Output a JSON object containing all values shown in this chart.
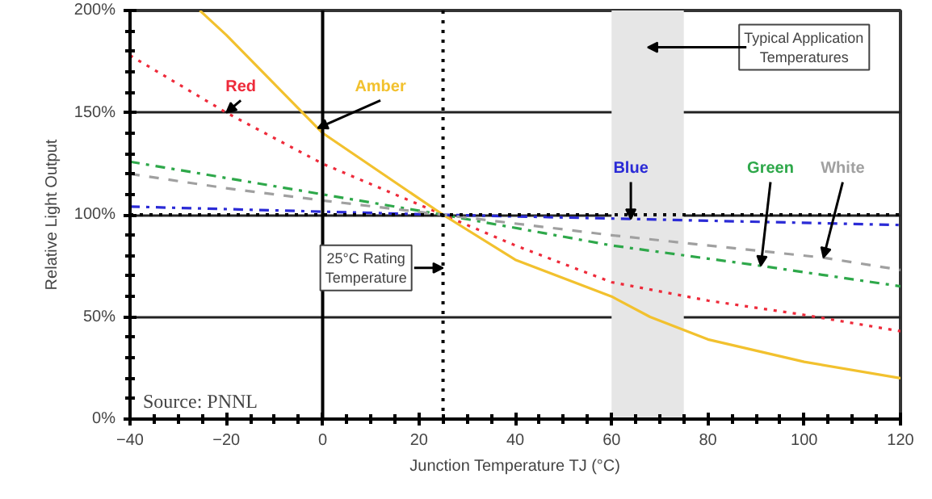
{
  "chart_data": {
    "type": "line",
    "xlabel": "Junction Temperature TJ (°C)",
    "ylabel": "Relative Light Output",
    "xlim": [
      -40,
      120
    ],
    "ylim": [
      0,
      200
    ],
    "xticks": [
      -40,
      -20,
      0,
      20,
      40,
      60,
      80,
      100,
      120
    ],
    "yticks": [
      {
        "value": 0,
        "label": "0%"
      },
      {
        "value": 50,
        "label": "50%"
      },
      {
        "value": 100,
        "label": "100%"
      },
      {
        "value": 150,
        "label": "150%"
      },
      {
        "value": 200,
        "label": "200%"
      }
    ],
    "grid": "y",
    "series": [
      {
        "name": "Red",
        "color": "#ee2a3a",
        "line_style": "dotted",
        "x": [
          -40,
          -20,
          0,
          25,
          40,
          60,
          80,
          100,
          120
        ],
        "values": [
          178,
          150,
          125,
          100,
          85,
          67,
          58,
          51,
          43
        ]
      },
      {
        "name": "Amber",
        "color": "#f2c12e",
        "line_style": "solid",
        "x": [
          -25.5,
          -20,
          0,
          25,
          40,
          60,
          68,
          80,
          100,
          120
        ],
        "values": [
          200,
          188,
          140,
          100,
          78,
          60,
          50,
          39,
          28,
          20
        ]
      },
      {
        "name": "Blue",
        "color": "#2b2bd6",
        "line_style": "dashdot",
        "x": [
          -40,
          25,
          120
        ],
        "values": [
          104,
          100,
          95
        ]
      },
      {
        "name": "Green",
        "color": "#2ea84a",
        "line_style": "dashdot",
        "x": [
          -40,
          -20,
          0,
          25,
          60,
          91,
          120
        ],
        "values": [
          126,
          118,
          110,
          100,
          85,
          75,
          65
        ]
      },
      {
        "name": "White",
        "color": "#a0a0a0",
        "line_style": "dashed",
        "x": [
          -40,
          -20,
          0,
          25,
          60,
          104,
          120
        ],
        "values": [
          120,
          113,
          107,
          100,
          90,
          79,
          73
        ]
      }
    ],
    "ref_lines": [
      {
        "axis": "x",
        "value": 0,
        "line_style": "solid",
        "color": "#000000"
      },
      {
        "axis": "y",
        "value": 100,
        "line_style": "dotted",
        "color": "#000000"
      },
      {
        "axis": "x",
        "value": 25,
        "label": "25°C Rating Temperature",
        "line_style": "dotted",
        "color": "#000000"
      }
    ],
    "bands": [
      {
        "axis": "x",
        "from": 60,
        "to": 75,
        "label": "Typical Application Temperatures",
        "color": "#e6e6e6"
      }
    ],
    "annotations": [
      "Source: PNNL"
    ]
  }
}
